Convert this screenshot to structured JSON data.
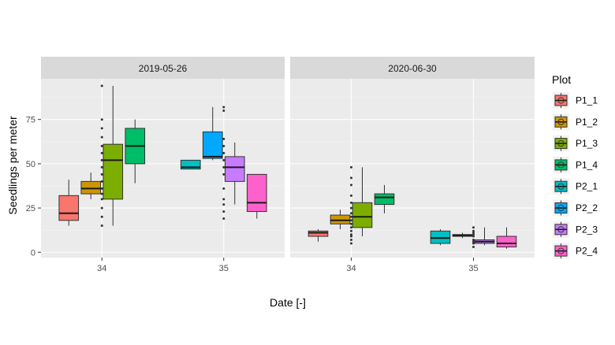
{
  "chart_data": {
    "type": "boxplot",
    "xlabel": "Date [-]",
    "ylabel": "Seedlings per meter",
    "ylim": [
      -3,
      98
    ],
    "yticks": [
      0,
      25,
      50,
      75
    ],
    "x_categories": [
      "34",
      "35"
    ],
    "legend": {
      "title": "Plot",
      "placement": "right"
    },
    "series": [
      {
        "name": "P1_1",
        "color": "#F8766D"
      },
      {
        "name": "P1_2",
        "color": "#CD9600"
      },
      {
        "name": "P1_3",
        "color": "#7CAE00"
      },
      {
        "name": "P1_4",
        "color": "#00BE67"
      },
      {
        "name": "P2_1",
        "color": "#00BFC4"
      },
      {
        "name": "P2_2",
        "color": "#00A9FF"
      },
      {
        "name": "P2_3",
        "color": "#C77CFF"
      },
      {
        "name": "P2_4",
        "color": "#FF61CC"
      }
    ],
    "panels": [
      {
        "title": "2019-05-26",
        "boxes": [
          {
            "x": "34",
            "series": "P1_1",
            "min": 15,
            "q1": 18,
            "median": 22,
            "q3": 32,
            "max": 41,
            "outliers": []
          },
          {
            "x": "34",
            "series": "P1_2",
            "min": 30,
            "q1": 33,
            "median": 36,
            "q3": 40,
            "max": 45,
            "outliers": []
          },
          {
            "x": "34",
            "series": "P1_3",
            "min": 15,
            "q1": 30,
            "median": 52,
            "q3": 61,
            "max": 94,
            "outliers": []
          },
          {
            "x": "34",
            "series": "P1_4",
            "min": 39,
            "q1": 50,
            "median": 60,
            "q3": 70,
            "max": 75,
            "outliers": []
          },
          {
            "x": "35",
            "series": "P2_1",
            "min": 47,
            "q1": 47,
            "median": 48,
            "q3": 52,
            "max": 52,
            "outliers": []
          },
          {
            "x": "35",
            "series": "P2_2",
            "min": 52,
            "q1": 53,
            "median": 54,
            "q3": 68,
            "max": 82,
            "outliers": []
          },
          {
            "x": "35",
            "series": "P2_3",
            "min": 27,
            "q1": 40,
            "median": 48,
            "q3": 54,
            "max": 62,
            "outliers": []
          },
          {
            "x": "35",
            "series": "P2_4",
            "min": 19,
            "q1": 23,
            "median": 28,
            "q3": 44,
            "max": 44,
            "outliers": []
          }
        ],
        "points": [
          {
            "x": "34",
            "values": [
              15,
              20,
              25,
              30,
              33,
              36,
              40,
              44,
              48,
              52,
              56,
              60,
              65,
              70,
              75,
              94
            ]
          },
          {
            "x": "35",
            "values": [
              19,
              23,
              27,
              30,
              36,
              44,
              48,
              52,
              56,
              60,
              64,
              80,
              82
            ]
          }
        ]
      },
      {
        "title": "2020-06-30",
        "boxes": [
          {
            "x": "34",
            "series": "P1_1",
            "min": 6,
            "q1": 9,
            "median": 11,
            "q3": 12,
            "max": 13,
            "outliers": []
          },
          {
            "x": "34",
            "series": "P1_2",
            "min": 13,
            "q1": 16,
            "median": 18,
            "q3": 21,
            "max": 24,
            "outliers": []
          },
          {
            "x": "34",
            "series": "P1_3",
            "min": 9,
            "q1": 14,
            "median": 20,
            "q3": 28,
            "max": 48,
            "outliers": []
          },
          {
            "x": "34",
            "series": "P1_4",
            "min": 22,
            "q1": 27,
            "median": 31,
            "q3": 33,
            "max": 38,
            "outliers": []
          },
          {
            "x": "35",
            "series": "P2_1",
            "min": 4,
            "q1": 5,
            "median": 8,
            "q3": 12,
            "max": 13,
            "outliers": []
          },
          {
            "x": "35",
            "series": "P2_2",
            "min": 8,
            "q1": 9,
            "median": 9.5,
            "q3": 10,
            "max": 11,
            "outliers": []
          },
          {
            "x": "35",
            "series": "P2_3",
            "min": 4,
            "q1": 5,
            "median": 6,
            "q3": 7,
            "max": 14,
            "outliers": []
          },
          {
            "x": "35",
            "series": "P2_4",
            "min": 2,
            "q1": 3,
            "median": 5,
            "q3": 9,
            "max": 14,
            "outliers": []
          }
        ],
        "points": [
          {
            "x": "34",
            "values": [
              5,
              7,
              9,
              10,
              12,
              14,
              16,
              18,
              20,
              22,
              25,
              28,
              32,
              38,
              42,
              48
            ]
          },
          {
            "x": "35",
            "values": [
              3,
              5,
              6,
              7,
              9,
              10,
              11,
              12,
              14
            ]
          }
        ]
      }
    ]
  }
}
